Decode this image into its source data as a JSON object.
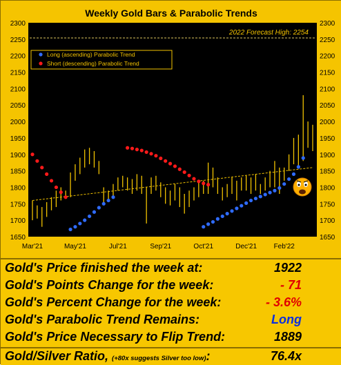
{
  "chart_data": {
    "type": "candlestick-with-parabolic-trends",
    "title": "Weekly Gold Bars & Parabolic Trends",
    "forecast_label": "2022 Forecast High: 2254",
    "forecast_value": 2254,
    "y_ticks": [
      1650,
      1700,
      1750,
      1800,
      1850,
      1900,
      1950,
      2000,
      2050,
      2100,
      2150,
      2200,
      2250,
      2300
    ],
    "ylim": [
      1650,
      2300
    ],
    "x_ticks": [
      "Mar'21",
      "May'21",
      "Jul'21",
      "Sep'21",
      "Oct'21",
      "Dec'21",
      "Feb'22"
    ],
    "legend": [
      "Long (ascending) Parabolic Trend",
      "Short (descending) Parabolic Trend"
    ],
    "colors": {
      "bars": "#f2c300",
      "long": "#2f6bff",
      "short": "#ff1a1a",
      "trendline": "#f2c300",
      "forecast": "#e0c860"
    },
    "weekly_bars": [
      {
        "w": 0,
        "h": 1760,
        "l": 1700
      },
      {
        "w": 1,
        "h": 1745,
        "l": 1705
      },
      {
        "w": 2,
        "h": 1740,
        "l": 1680
      },
      {
        "w": 3,
        "h": 1755,
        "l": 1710
      },
      {
        "w": 4,
        "h": 1770,
        "l": 1730
      },
      {
        "w": 5,
        "h": 1790,
        "l": 1740
      },
      {
        "w": 6,
        "h": 1800,
        "l": 1760
      },
      {
        "w": 7,
        "h": 1790,
        "l": 1765
      },
      {
        "w": 8,
        "h": 1845,
        "l": 1770
      },
      {
        "w": 9,
        "h": 1870,
        "l": 1820
      },
      {
        "w": 10,
        "h": 1890,
        "l": 1840
      },
      {
        "w": 11,
        "h": 1915,
        "l": 1860
      },
      {
        "w": 12,
        "h": 1920,
        "l": 1870
      },
      {
        "w": 13,
        "h": 1910,
        "l": 1860
      },
      {
        "w": 14,
        "h": 1880,
        "l": 1840
      },
      {
        "w": 15,
        "h": 1800,
        "l": 1750
      },
      {
        "w": 16,
        "h": 1790,
        "l": 1760
      },
      {
        "w": 17,
        "h": 1810,
        "l": 1770
      },
      {
        "w": 18,
        "h": 1830,
        "l": 1790
      },
      {
        "w": 19,
        "h": 1835,
        "l": 1800
      },
      {
        "w": 20,
        "h": 1830,
        "l": 1790
      },
      {
        "w": 21,
        "h": 1825,
        "l": 1780
      },
      {
        "w": 22,
        "h": 1840,
        "l": 1790
      },
      {
        "w": 23,
        "h": 1835,
        "l": 1780
      },
      {
        "w": 24,
        "h": 1800,
        "l": 1690
      },
      {
        "w": 25,
        "h": 1830,
        "l": 1780
      },
      {
        "w": 26,
        "h": 1835,
        "l": 1790
      },
      {
        "w": 27,
        "h": 1815,
        "l": 1770
      },
      {
        "w": 28,
        "h": 1800,
        "l": 1750
      },
      {
        "w": 29,
        "h": 1790,
        "l": 1745
      },
      {
        "w": 30,
        "h": 1810,
        "l": 1760
      },
      {
        "w": 31,
        "h": 1800,
        "l": 1740
      },
      {
        "w": 32,
        "h": 1780,
        "l": 1720
      },
      {
        "w": 33,
        "h": 1790,
        "l": 1740
      },
      {
        "w": 34,
        "h": 1800,
        "l": 1760
      },
      {
        "w": 35,
        "h": 1815,
        "l": 1770
      },
      {
        "w": 36,
        "h": 1820,
        "l": 1780
      },
      {
        "w": 37,
        "h": 1875,
        "l": 1780
      },
      {
        "w": 38,
        "h": 1860,
        "l": 1800
      },
      {
        "w": 39,
        "h": 1830,
        "l": 1780
      },
      {
        "w": 40,
        "h": 1800,
        "l": 1760
      },
      {
        "w": 41,
        "h": 1810,
        "l": 1770
      },
      {
        "w": 42,
        "h": 1830,
        "l": 1780
      },
      {
        "w": 43,
        "h": 1820,
        "l": 1760
      },
      {
        "w": 44,
        "h": 1830,
        "l": 1790
      },
      {
        "w": 45,
        "h": 1835,
        "l": 1790
      },
      {
        "w": 46,
        "h": 1830,
        "l": 1780
      },
      {
        "w": 47,
        "h": 1840,
        "l": 1790
      },
      {
        "w": 48,
        "h": 1810,
        "l": 1780
      },
      {
        "w": 49,
        "h": 1830,
        "l": 1790
      },
      {
        "w": 50,
        "h": 1850,
        "l": 1800
      },
      {
        "w": 51,
        "h": 1880,
        "l": 1800
      },
      {
        "w": 52,
        "h": 1860,
        "l": 1780
      },
      {
        "w": 53,
        "h": 1860,
        "l": 1820
      },
      {
        "w": 54,
        "h": 1900,
        "l": 1850
      },
      {
        "w": 55,
        "h": 1950,
        "l": 1870
      },
      {
        "w": 56,
        "h": 1960,
        "l": 1860
      },
      {
        "w": 57,
        "h": 2080,
        "l": 1880
      },
      {
        "w": 58,
        "h": 2000,
        "l": 1920
      },
      {
        "w": 59,
        "h": 1990,
        "l": 1910
      }
    ],
    "short_trend": [
      {
        "w": 0,
        "v": 1900
      },
      {
        "w": 1,
        "v": 1880
      },
      {
        "w": 2,
        "v": 1860
      },
      {
        "w": 3,
        "v": 1840
      },
      {
        "w": 4,
        "v": 1820
      },
      {
        "w": 5,
        "v": 1800
      },
      {
        "w": 6,
        "v": 1785
      },
      {
        "w": 7,
        "v": 1770
      },
      {
        "w": 20,
        "v": 1920
      },
      {
        "w": 21,
        "v": 1918
      },
      {
        "w": 22,
        "v": 1915
      },
      {
        "w": 23,
        "v": 1912
      },
      {
        "w": 24,
        "v": 1907
      },
      {
        "w": 25,
        "v": 1902
      },
      {
        "w": 26,
        "v": 1896
      },
      {
        "w": 27,
        "v": 1888
      },
      {
        "w": 28,
        "v": 1880
      },
      {
        "w": 29,
        "v": 1872
      },
      {
        "w": 30,
        "v": 1864
      },
      {
        "w": 31,
        "v": 1855
      },
      {
        "w": 32,
        "v": 1846
      },
      {
        "w": 33,
        "v": 1836
      },
      {
        "w": 34,
        "v": 1826
      },
      {
        "w": 35,
        "v": 1818
      },
      {
        "w": 36,
        "v": 1812
      },
      {
        "w": 37,
        "v": 1808
      }
    ],
    "long_trend": [
      {
        "w": 8,
        "v": 1672
      },
      {
        "w": 9,
        "v": 1680
      },
      {
        "w": 10,
        "v": 1690
      },
      {
        "w": 11,
        "v": 1700
      },
      {
        "w": 12,
        "v": 1712
      },
      {
        "w": 13,
        "v": 1725
      },
      {
        "w": 14,
        "v": 1738
      },
      {
        "w": 15,
        "v": 1750
      },
      {
        "w": 16,
        "v": 1760
      },
      {
        "w": 17,
        "v": 1770
      },
      {
        "w": 36,
        "v": 1680
      },
      {
        "w": 37,
        "v": 1688
      },
      {
        "w": 38,
        "v": 1695
      },
      {
        "w": 39,
        "v": 1704
      },
      {
        "w": 40,
        "v": 1712
      },
      {
        "w": 41,
        "v": 1720
      },
      {
        "w": 42,
        "v": 1728
      },
      {
        "w": 43,
        "v": 1736
      },
      {
        "w": 44,
        "v": 1744
      },
      {
        "w": 45,
        "v": 1752
      },
      {
        "w": 46,
        "v": 1760
      },
      {
        "w": 47,
        "v": 1766
      },
      {
        "w": 48,
        "v": 1772
      },
      {
        "w": 49,
        "v": 1778
      },
      {
        "w": 50,
        "v": 1784
      },
      {
        "w": 51,
        "v": 1790
      },
      {
        "w": 52,
        "v": 1798
      },
      {
        "w": 53,
        "v": 1810
      },
      {
        "w": 54,
        "v": 1825
      },
      {
        "w": 55,
        "v": 1840
      },
      {
        "w": 56,
        "v": 1862
      },
      {
        "w": 57,
        "v": 1889
      }
    ],
    "trendline": {
      "start": {
        "w": 0,
        "v": 1760
      },
      "end": {
        "w": 59,
        "v": 1860
      }
    }
  },
  "stats": {
    "price_label": "Gold's Price finished the week at:",
    "price_value": "1922",
    "points_label": "Gold's Points Change for the week:",
    "points_value": "- 71",
    "percent_label": "Gold's Percent Change for the week:",
    "percent_value": "- 3.6%",
    "trend_label": "Gold's Parabolic Trend Remains:",
    "trend_value": "Long",
    "flip_label": "Gold's Price Necessary to Flip Trend:",
    "flip_value": "1889",
    "ratio_label": "Gold/Silver Ratio,",
    "ratio_note": "(+80x suggests Silver too low)",
    "ratio_colon": ":",
    "ratio_value": "76.4x"
  }
}
